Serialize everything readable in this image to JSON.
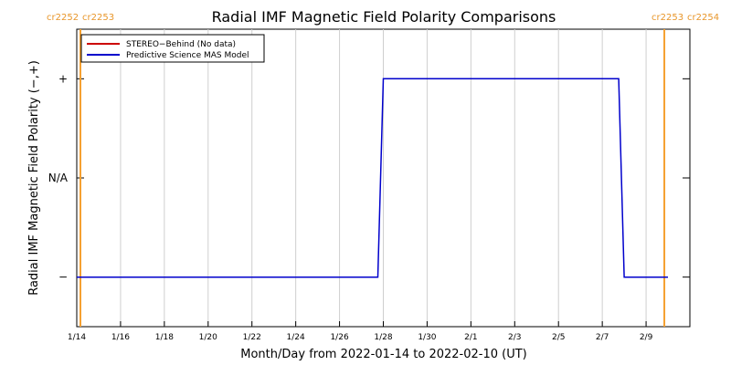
{
  "chart_data": {
    "type": "line",
    "title": "Radial IMF Magnetic Field Polarity Comparisons",
    "xlabel": "Month/Day from 2022-01-14 to 2022-02-10 (UT)",
    "ylabel": "Radial IMF Magnetic Field Polarity (−,+)",
    "x_range": [
      "2022-01-14",
      "2022-02-11"
    ],
    "ylim": [
      -1.5,
      1.5
    ],
    "y_ticks": [
      {
        "value": 1,
        "label": "+"
      },
      {
        "value": 0,
        "label": "N/A"
      },
      {
        "value": -1,
        "label": "−"
      }
    ],
    "x_ticks": [
      {
        "date": "2022-01-14",
        "label": "1/14"
      },
      {
        "date": "2022-01-16",
        "label": "1/16"
      },
      {
        "date": "2022-01-18",
        "label": "1/18"
      },
      {
        "date": "2022-01-20",
        "label": "1/20"
      },
      {
        "date": "2022-01-22",
        "label": "1/22"
      },
      {
        "date": "2022-01-24",
        "label": "1/24"
      },
      {
        "date": "2022-01-26",
        "label": "1/26"
      },
      {
        "date": "2022-01-28",
        "label": "1/28"
      },
      {
        "date": "2022-01-30",
        "label": "1/30"
      },
      {
        "date": "2022-02-01",
        "label": "2/1"
      },
      {
        "date": "2022-02-03",
        "label": "2/3"
      },
      {
        "date": "2022-02-05",
        "label": "2/5"
      },
      {
        "date": "2022-02-07",
        "label": "2/7"
      },
      {
        "date": "2022-02-09",
        "label": "2/9"
      }
    ],
    "legend_position": "top-left",
    "series": [
      {
        "name": "STEREO−Behind (No data)",
        "color": "#cc0000",
        "points": []
      },
      {
        "name": "Predictive Science MAS Model",
        "color": "#0000cc",
        "points": [
          {
            "x": "2022-01-14T00:00",
            "y": -1
          },
          {
            "x": "2022-01-27T18:00",
            "y": -1
          },
          {
            "x": "2022-01-28T00:00",
            "y": 1
          },
          {
            "x": "2022-02-07T18:00",
            "y": 1
          },
          {
            "x": "2022-02-08T00:00",
            "y": -1
          },
          {
            "x": "2022-02-10T00:00",
            "y": -1
          }
        ]
      }
    ],
    "carrington_markers": [
      {
        "date": "2022-01-14T00:00",
        "labels": [
          "cr2252",
          "cr2253"
        ],
        "side": "left"
      },
      {
        "date": "2022-02-10T00:00",
        "labels": [
          "cr2253",
          "cr2254"
        ],
        "side": "right"
      }
    ],
    "marker_color": "#f5a030"
  }
}
